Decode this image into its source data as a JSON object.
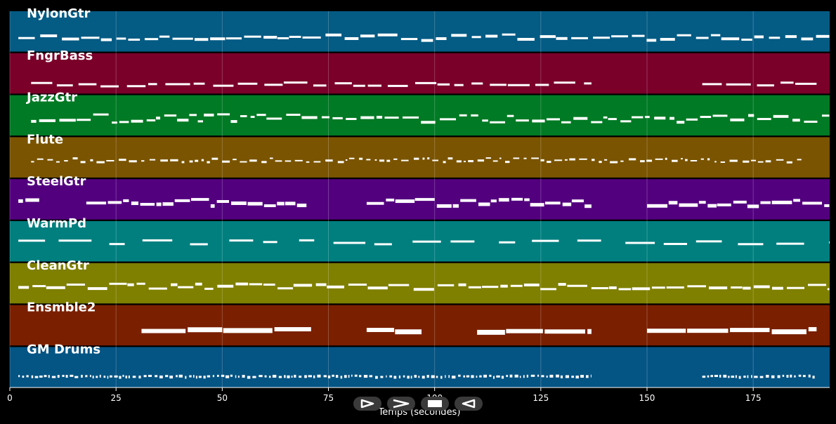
{
  "tracks": [
    {
      "name": "NylonGtr",
      "color": "#045b84"
    },
    {
      "name": "FngrBass",
      "color": "#7a002a"
    },
    {
      "name": "JazzGtr",
      "color": "#007a24"
    },
    {
      "name": "Flute",
      "color": "#7a5400"
    },
    {
      "name": "SteelGtr",
      "color": "#53007f"
    },
    {
      "name": "WarmPd",
      "color": "#007f7f"
    },
    {
      "name": "CleanGtr",
      "color": "#7f7f00"
    },
    {
      "name": "Ensmble2",
      "color": "#7a2000"
    },
    {
      "name": "GM Drums",
      "color": "#045484"
    }
  ],
  "axis": {
    "xlabel": "Temps (secondes)",
    "ticks": [
      "0",
      "25",
      "50",
      "75",
      "100",
      "125",
      "150",
      "175"
    ],
    "xmax": 193
  },
  "controls": {
    "play_icon": "play-outline-icon",
    "next_icon": "chevron-right-icon",
    "stop_icon": "stop-icon",
    "back_icon": "play-reverse-outline-icon"
  }
}
